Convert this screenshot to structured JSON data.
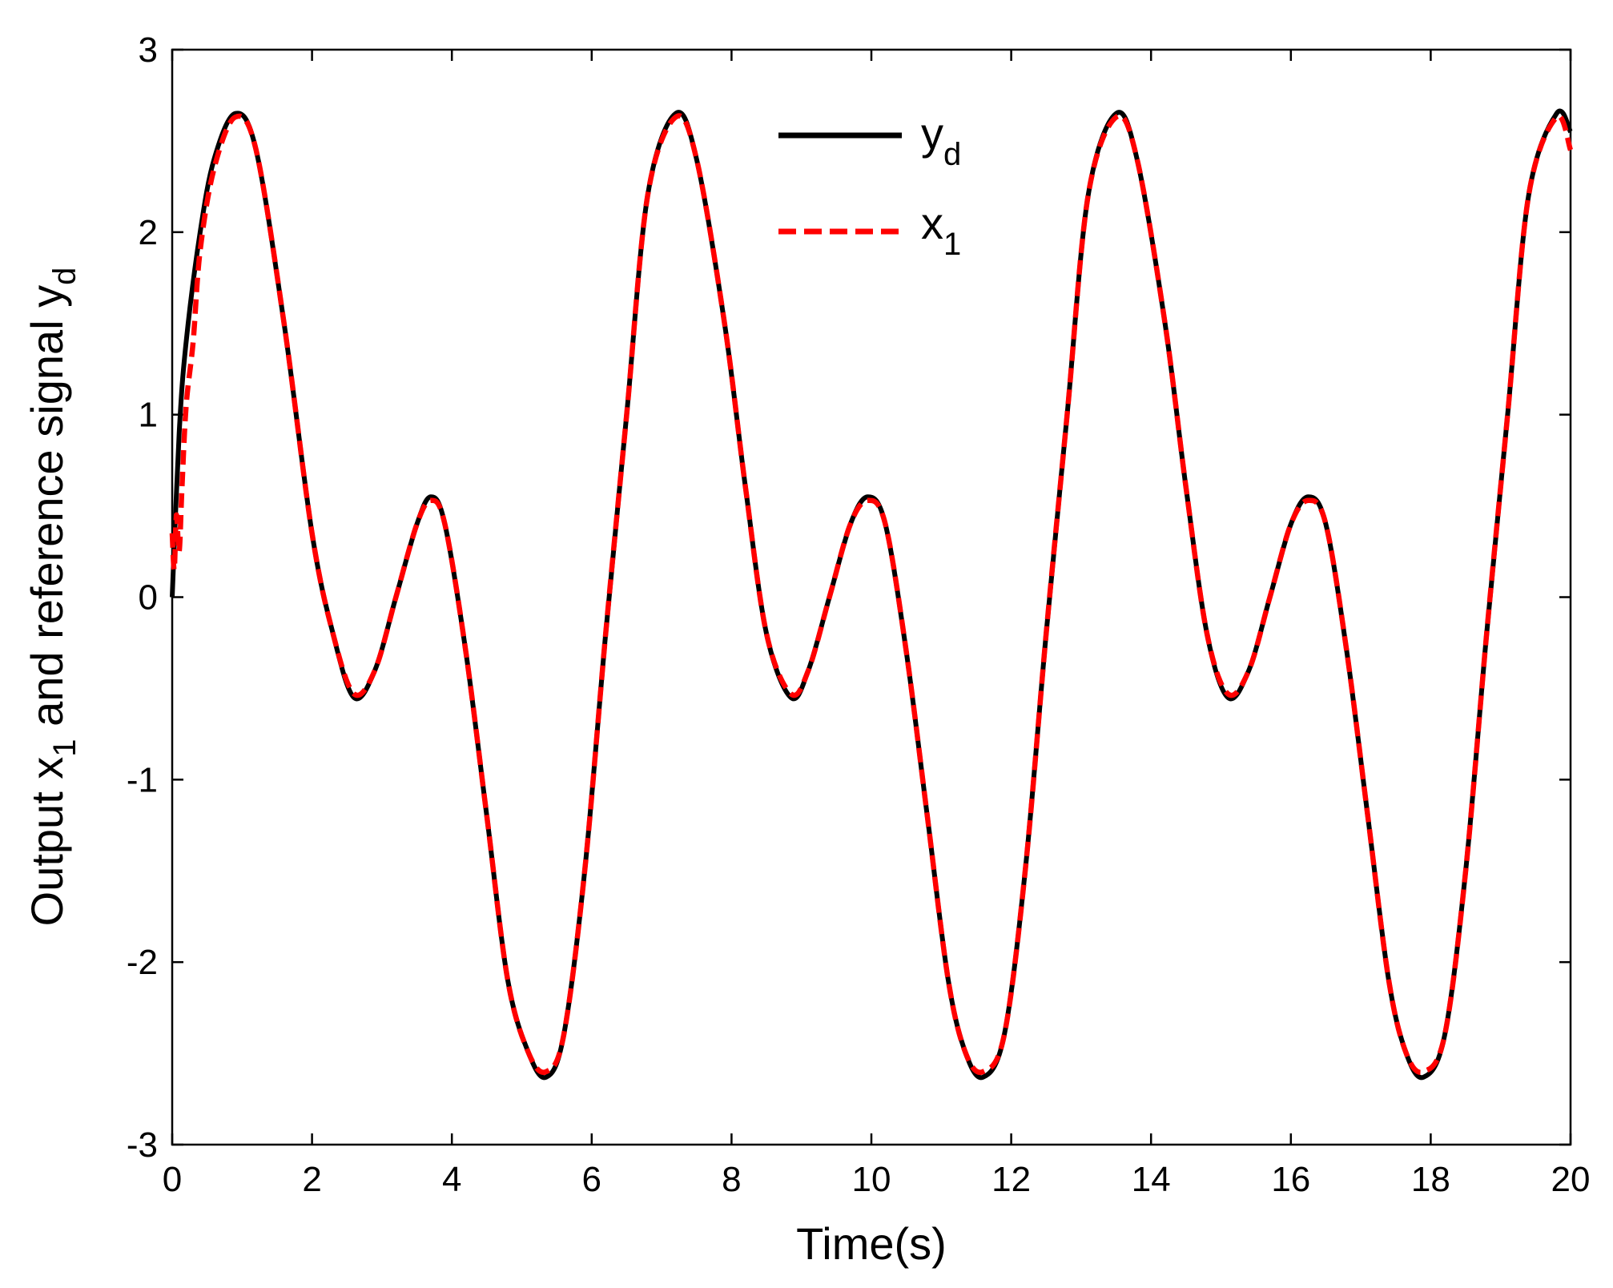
{
  "chart_data": {
    "type": "line",
    "xlabel": "Time(s)",
    "ylabel_parts": {
      "prefix": "Output x",
      "sub1": "1",
      "middle": " and reference signal y",
      "sub2": "d"
    },
    "xlim": [
      0,
      20
    ],
    "ylim": [
      -3,
      3
    ],
    "xticks": [
      0,
      2,
      4,
      6,
      8,
      10,
      12,
      14,
      16,
      18,
      20
    ],
    "yticks": [
      -3,
      -2,
      -1,
      0,
      1,
      2,
      3
    ],
    "xtick_labels": [
      "0",
      "2",
      "4",
      "6",
      "8",
      "10",
      "12",
      "14",
      "16",
      "18",
      "20"
    ],
    "ytick_labels": [
      "-3",
      "-2",
      "-1",
      "0",
      "1",
      "2",
      "3"
    ],
    "grid": false,
    "legend_position": "top-center",
    "series": [
      {
        "name": "y",
        "name_sub": "d",
        "color": "#000000",
        "style": "solid",
        "x": [
          0,
          0.1,
          0.2,
          0.4,
          0.6,
          0.9,
          1.2,
          1.6,
          2.0,
          2.3,
          2.6,
          2.9,
          3.2,
          3.5,
          3.7,
          3.9,
          4.2,
          4.5,
          4.8,
          5.1,
          5.35,
          5.6,
          5.9,
          6.2,
          6.5,
          6.8,
          7.2,
          7.5,
          7.9,
          8.2,
          8.5,
          8.85,
          9.1,
          9.4,
          9.7,
          9.95,
          10.2,
          10.5,
          10.8,
          11.1,
          11.35,
          11.6,
          11.9,
          12.2,
          12.5,
          12.8,
          13.1,
          13.5,
          13.8,
          14.2,
          14.5,
          14.8,
          15.1,
          15.4,
          15.7,
          16.0,
          16.25,
          16.5,
          16.8,
          17.1,
          17.4,
          17.65,
          17.9,
          18.2,
          18.5,
          18.8,
          19.1,
          19.4,
          19.8,
          20.0
        ],
        "y": [
          0.0,
          0.9,
          1.4,
          2.0,
          2.4,
          2.65,
          2.45,
          1.5,
          0.35,
          -0.2,
          -0.55,
          -0.4,
          0.0,
          0.4,
          0.55,
          0.4,
          -0.3,
          -1.2,
          -2.1,
          -2.5,
          -2.63,
          -2.4,
          -1.5,
          -0.2,
          1.0,
          2.2,
          2.65,
          2.4,
          1.5,
          0.6,
          -0.2,
          -0.55,
          -0.4,
          0.0,
          0.4,
          0.55,
          0.4,
          -0.3,
          -1.2,
          -2.1,
          -2.5,
          -2.63,
          -2.4,
          -1.5,
          -0.2,
          1.0,
          2.2,
          2.65,
          2.4,
          1.5,
          0.6,
          -0.2,
          -0.55,
          -0.4,
          0.0,
          0.4,
          0.55,
          0.4,
          -0.3,
          -1.2,
          -2.1,
          -2.5,
          -2.63,
          -2.4,
          -1.5,
          -0.2,
          1.0,
          2.2,
          2.65,
          2.55
        ]
      },
      {
        "name": "x",
        "name_sub": "1",
        "color": "#ff0000",
        "style": "dashed",
        "x": [
          0,
          0.03,
          0.06,
          0.1,
          0.14,
          0.2,
          0.3,
          0.4,
          0.6,
          0.9,
          1.2,
          1.6,
          2.0,
          2.3,
          2.6,
          2.9,
          3.2,
          3.5,
          3.7,
          3.9,
          4.2,
          4.5,
          4.8,
          5.1,
          5.35,
          5.6,
          5.9,
          6.2,
          6.5,
          6.8,
          7.2,
          7.5,
          7.9,
          8.2,
          8.5,
          8.85,
          9.1,
          9.4,
          9.7,
          9.95,
          10.2,
          10.5,
          10.8,
          11.1,
          11.35,
          11.6,
          11.9,
          12.2,
          12.5,
          12.8,
          13.1,
          13.5,
          13.8,
          14.2,
          14.5,
          14.8,
          15.1,
          15.4,
          15.7,
          16.0,
          16.25,
          16.5,
          16.8,
          17.1,
          17.4,
          17.65,
          17.9,
          18.2,
          18.5,
          18.8,
          19.1,
          19.4,
          19.8,
          20.0
        ],
        "y": [
          0.35,
          0.15,
          0.45,
          0.25,
          0.6,
          1.05,
          1.4,
          1.9,
          2.35,
          2.63,
          2.45,
          1.5,
          0.35,
          -0.2,
          -0.53,
          -0.4,
          0.0,
          0.4,
          0.53,
          0.4,
          -0.3,
          -1.2,
          -2.1,
          -2.5,
          -2.6,
          -2.4,
          -1.5,
          -0.2,
          1.0,
          2.2,
          2.63,
          2.4,
          1.5,
          0.6,
          -0.2,
          -0.53,
          -0.4,
          0.0,
          0.4,
          0.53,
          0.4,
          -0.3,
          -1.2,
          -2.1,
          -2.5,
          -2.6,
          -2.4,
          -1.5,
          -0.2,
          1.0,
          2.2,
          2.63,
          2.4,
          1.5,
          0.6,
          -0.2,
          -0.53,
          -0.4,
          0.0,
          0.4,
          0.53,
          0.4,
          -0.3,
          -1.2,
          -2.1,
          -2.5,
          -2.6,
          -2.4,
          -1.5,
          -0.2,
          1.0,
          2.2,
          2.63,
          2.45
        ]
      }
    ]
  }
}
